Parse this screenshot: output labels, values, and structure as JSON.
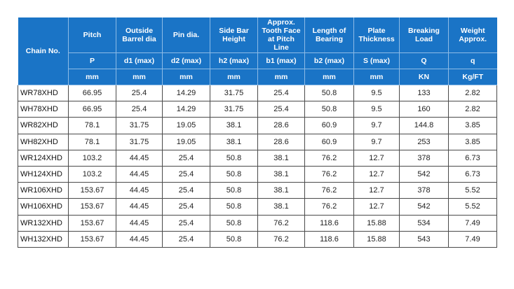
{
  "table": {
    "header": {
      "chain_no": "Chain No.",
      "columns": [
        {
          "title": "Pitch",
          "symbol": "P",
          "unit": "mm"
        },
        {
          "title": "Outside Barrel dia",
          "symbol": "d1 (max)",
          "unit": "mm"
        },
        {
          "title": "Pin dia.",
          "symbol": "d2 (max)",
          "unit": "mm"
        },
        {
          "title": "Side Bar Height",
          "symbol": "h2 (max)",
          "unit": "mm"
        },
        {
          "title": "Approx. Tooth Face at Pitch Line",
          "symbol": "b1 (max)",
          "unit": "mm"
        },
        {
          "title": "Length of Bearing",
          "symbol": "b2 (max)",
          "unit": "mm"
        },
        {
          "title": "Plate Thickness",
          "symbol": "S (max)",
          "unit": "mm"
        },
        {
          "title": "Breaking Load",
          "symbol": "Q",
          "unit": "KN"
        },
        {
          "title": "Weight Approx.",
          "symbol": "q",
          "unit": "Kg/FT"
        }
      ]
    },
    "rows": [
      [
        "WR78XHD",
        "66.95",
        "25.4",
        "14.29",
        "31.75",
        "25.4",
        "50.8",
        "9.5",
        "133",
        "2.82"
      ],
      [
        "WH78XHD",
        "66.95",
        "25.4",
        "14.29",
        "31.75",
        "25.4",
        "50.8",
        "9.5",
        "160",
        "2.82"
      ],
      [
        "WR82XHD",
        "78.1",
        "31.75",
        "19.05",
        "38.1",
        "28.6",
        "60.9",
        "9.7",
        "144.8",
        "3.85"
      ],
      [
        "WH82XHD",
        "78.1",
        "31.75",
        "19.05",
        "38.1",
        "28.6",
        "60.9",
        "9.7",
        "253",
        "3.85"
      ],
      [
        "WR124XHD",
        "103.2",
        "44.45",
        "25.4",
        "50.8",
        "38.1",
        "76.2",
        "12.7",
        "378",
        "6.73"
      ],
      [
        "WH124XHD",
        "103.2",
        "44.45",
        "25.4",
        "50.8",
        "38.1",
        "76.2",
        "12.7",
        "542",
        "6.73"
      ],
      [
        "WR106XHD",
        "153.67",
        "44.45",
        "25.4",
        "50.8",
        "38.1",
        "76.2",
        "12.7",
        "378",
        "5.52"
      ],
      [
        "WH106XHD",
        "153.67",
        "44.45",
        "25.4",
        "50.8",
        "38.1",
        "76.2",
        "12.7",
        "542",
        "5.52"
      ],
      [
        "WR132XHD",
        "153.67",
        "44.45",
        "25.4",
        "50.8",
        "76.2",
        "118.6",
        "15.88",
        "534",
        "7.49"
      ],
      [
        "WH132XHD",
        "153.67",
        "44.45",
        "25.4",
        "50.8",
        "76.2",
        "118.6",
        "15.88",
        "543",
        "7.49"
      ]
    ]
  }
}
